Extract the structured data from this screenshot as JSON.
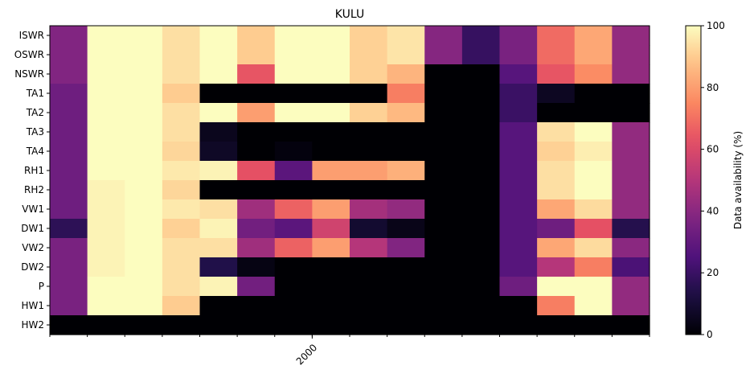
{
  "chart_data": {
    "type": "heatmap",
    "title": "KULU",
    "xlabel": "",
    "ylabel": "",
    "x_tick_labels": [
      {
        "col": 7,
        "label": "2000"
      }
    ],
    "n_cols": 16,
    "rows": [
      "ISWR",
      "OSWR",
      "NSWR",
      "TA1",
      "TA2",
      "TA3",
      "TA4",
      "RH1",
      "RH2",
      "VW1",
      "DW1",
      "VW2",
      "DW2",
      "P",
      "HW1",
      "HW2"
    ],
    "values": [
      [
        38,
        100,
        100,
        94,
        100,
        90,
        100,
        100,
        91,
        95,
        39,
        19,
        36,
        69,
        82,
        42
      ],
      [
        38,
        100,
        100,
        94,
        100,
        90,
        100,
        100,
        91,
        95,
        39,
        19,
        36,
        69,
        82,
        42
      ],
      [
        38,
        100,
        100,
        94,
        100,
        64,
        100,
        100,
        91,
        85,
        0,
        0,
        27,
        64,
        76,
        42
      ],
      [
        33,
        100,
        100,
        90,
        0,
        0,
        0,
        0,
        0,
        73,
        0,
        0,
        20,
        6,
        0,
        0
      ],
      [
        33,
        100,
        100,
        94,
        100,
        80,
        100,
        100,
        91,
        86,
        0,
        0,
        20,
        0,
        0,
        0
      ],
      [
        33,
        100,
        100,
        94,
        5,
        0,
        0,
        0,
        0,
        0,
        0,
        0,
        27,
        94,
        100,
        42
      ],
      [
        33,
        100,
        100,
        92,
        7,
        0,
        2,
        0,
        0,
        0,
        0,
        0,
        27,
        91,
        97,
        42
      ],
      [
        33,
        100,
        100,
        96,
        98,
        63,
        28,
        80,
        80,
        84,
        0,
        0,
        27,
        94,
        100,
        42
      ],
      [
        33,
        98,
        100,
        92,
        0,
        0,
        0,
        0,
        0,
        0,
        0,
        0,
        27,
        94,
        100,
        42
      ],
      [
        33,
        98,
        100,
        96,
        94,
        45,
        67,
        80,
        46,
        42,
        0,
        0,
        27,
        82,
        93,
        42
      ],
      [
        17,
        98,
        100,
        91,
        98,
        34,
        28,
        57,
        9,
        4,
        0,
        0,
        27,
        33,
        63,
        15
      ],
      [
        36,
        98,
        100,
        94,
        94,
        45,
        67,
        80,
        50,
        38,
        0,
        0,
        27,
        82,
        93,
        40
      ],
      [
        36,
        98,
        100,
        94,
        14,
        3,
        0,
        0,
        0,
        0,
        0,
        0,
        27,
        50,
        73,
        24
      ],
      [
        36,
        100,
        100,
        94,
        98,
        34,
        0,
        0,
        0,
        0,
        0,
        0,
        33,
        100,
        100,
        42
      ],
      [
        36,
        100,
        100,
        90,
        0,
        0,
        0,
        0,
        0,
        0,
        0,
        0,
        0,
        73,
        100,
        42
      ],
      [
        0,
        0,
        0,
        0,
        0,
        0,
        0,
        0,
        0,
        0,
        0,
        0,
        0,
        0,
        0,
        0
      ]
    ],
    "colormap": "magma",
    "colorbar": {
      "label": "Data availability (%)",
      "min": 0,
      "max": 100,
      "ticks": [
        0,
        20,
        40,
        60,
        80,
        100
      ]
    }
  }
}
